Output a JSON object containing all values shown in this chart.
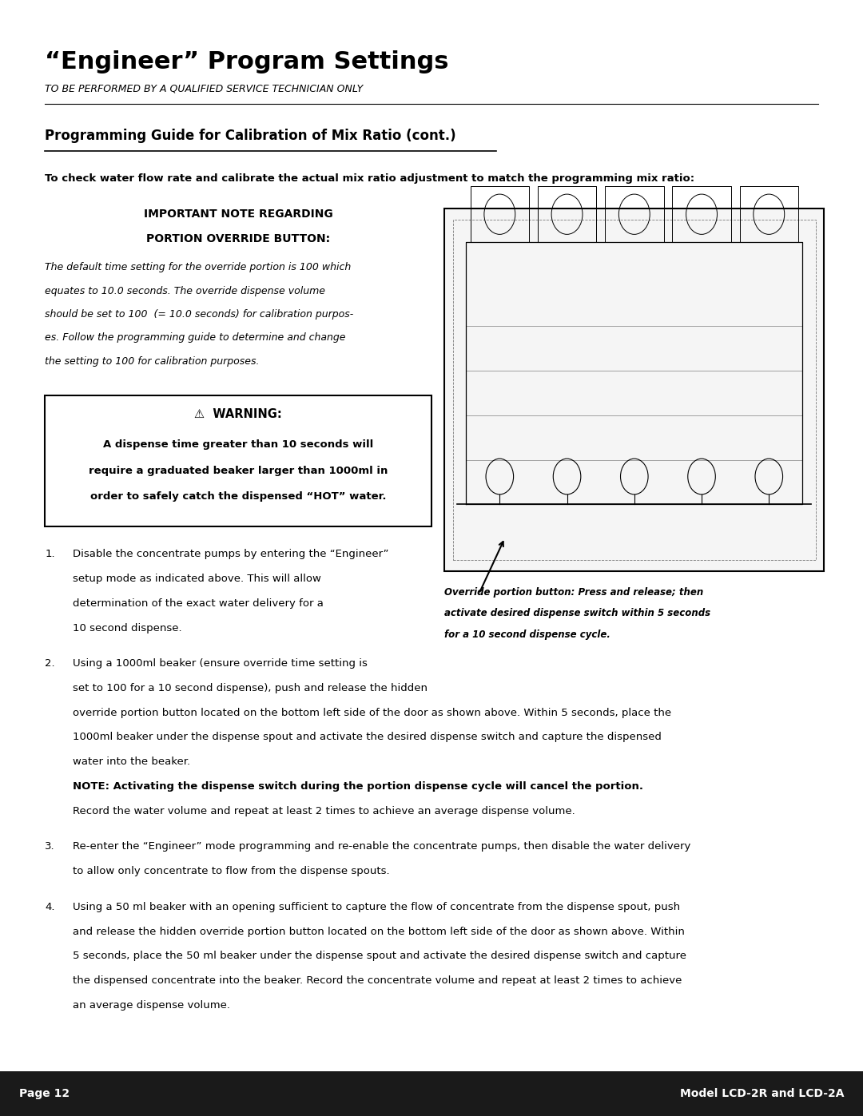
{
  "title": "“Engineer” Program Settings",
  "subtitle": "TO BE PERFORMED BY A QUALIFIED SERVICE TECHNICIAN ONLY",
  "section_heading": "Programming Guide for Calibration of Mix Ratio (cont.)",
  "check_water_line": "To check water flow rate and calibrate the actual mix ratio adjustment to match the programming mix ratio:",
  "important_heading1": "IMPORTANT NOTE REGARDING",
  "important_heading2": "PORTION OVERRIDE BUTTON:",
  "imp_line1": "The default time setting for the override portion is 100 which",
  "imp_line2": "equates to 10.0 seconds. The override dispense volume",
  "imp_line3": "should be set to 100  (= 10.0 seconds) for calibration purpos-",
  "imp_line4": "es. Follow the programming guide to determine and change",
  "imp_line5": "the setting to 100 for calibration purposes.",
  "warning_title": "⚠  WARNING:",
  "warning_body1": "A dispense time greater than 10 seconds will",
  "warning_body2": "require a graduated beaker larger than 1000ml in",
  "warning_body3": "order to safely catch the dispensed “HOT” water.",
  "step1_num": "1.",
  "step2_num": "2.",
  "step3_num": "3.",
  "step4_num": "4.",
  "step1_lines": [
    "Disable the concentrate pumps by entering the “Engineer”",
    "setup mode as indicated above. This will allow",
    "determination of the exact water delivery for a",
    "10 second dispense."
  ],
  "step2_lines_a": [
    "Using a 1000ml beaker (ensure override time setting is",
    "set to 100 for a 10 second dispense), push and release the hidden"
  ],
  "step2_lines_b": [
    "override portion button located on the bottom left side of the door as shown above. Within 5 seconds, place the",
    "1000ml beaker under the dispense spout and activate the desired dispense switch and capture the dispensed",
    "water into the beaker."
  ],
  "step2_note_bold": "NOTE: Activating the dispense switch during the portion dispense cycle will cancel the portion.",
  "step2_note_regular": "Record the water volume and repeat at least 2 times to achieve an average dispense volume.",
  "step3_lines": [
    "Re-enter the “Engineer” mode programming and re-enable the concentrate pumps, then disable the water delivery",
    "to allow only concentrate to flow from the dispense spouts."
  ],
  "step4_lines": [
    "Using a 50 ml beaker with an opening sufficient to capture the flow of concentrate from the dispense spout, push",
    "and release the hidden override portion button located on the bottom left side of the door as shown above. Within",
    "5 seconds, place the 50 ml beaker under the dispense spout and activate the desired dispense switch and capture",
    "the dispensed concentrate into the beaker. Record the concentrate volume and repeat at least 2 times to achieve",
    "an average dispense volume."
  ],
  "image_caption1": "Override portion button: Press and release; then",
  "image_caption2": "activate desired dispense switch within 5 seconds",
  "image_caption3": "for a 10 second dispense cycle.",
  "footer_left": "Page 12",
  "footer_right": "Model LCD-2R and LCD-2A",
  "bg_color": "#ffffff",
  "footer_bg": "#1a1a1a",
  "footer_text_color": "#ffffff",
  "text_color": "#000000"
}
